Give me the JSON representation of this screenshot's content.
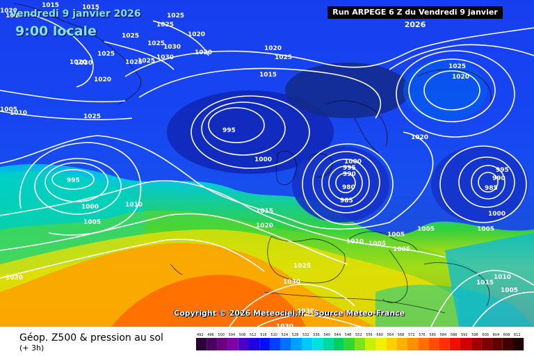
{
  "header": {
    "date_text": "Vendredi 9 janvier 2026",
    "time_text": "9:00 locale",
    "run_text": "Run ARPEGE 6 Z du Vendredi 9 janvier 2026"
  },
  "copyright_text": "Copyright © 2026 Meteociel.fr - Source Meteo-France",
  "footer": {
    "title": "Géop. Z500 & pression au sol",
    "subtitle": "(+ 3h)"
  },
  "legend": {
    "values": [
      "492",
      "496",
      "500",
      "504",
      "508",
      "512",
      "516",
      "520",
      "524",
      "528",
      "532",
      "536",
      "540",
      "544",
      "548",
      "552",
      "556",
      "560",
      "564",
      "568",
      "572",
      "576",
      "580",
      "584",
      "588",
      "592",
      "596",
      "600",
      "604",
      "608",
      "612"
    ],
    "colors": [
      "#2a0038",
      "#4a005e",
      "#6a0080",
      "#7d00a8",
      "#4b00c8",
      "#2000e0",
      "#0010ff",
      "#0040ff",
      "#0070ff",
      "#00a0ff",
      "#00c8ff",
      "#00e0e0",
      "#00d8a0",
      "#00d060",
      "#30d830",
      "#80e020",
      "#c8f000",
      "#f0f000",
      "#ffd000",
      "#ffb000",
      "#ff9000",
      "#ff7000",
      "#ff5000",
      "#ff3000",
      "#f01000",
      "#d00000",
      "#a00000",
      "#800000",
      "#600000",
      "#400000",
      "#200000"
    ]
  },
  "isobar_labels": [
    {
      "text": "1020"
    },
    {
      "text": "1015"
    },
    {
      "text": "1025"
    },
    {
      "text": "1020"
    },
    {
      "text": "1025"
    },
    {
      "text": "1025"
    },
    {
      "text": "1020"
    },
    {
      "text": "1030"
    },
    {
      "text": "1025"
    },
    {
      "text": "1025"
    },
    {
      "text": "1020"
    },
    {
      "text": "1025"
    },
    {
      "text": "1025"
    },
    {
      "text": "1020"
    },
    {
      "text": "1015"
    },
    {
      "text": "1015"
    },
    {
      "text": "1025"
    },
    {
      "text": "1030"
    },
    {
      "text": "1030"
    },
    {
      "text": "1020"
    },
    {
      "text": "1005"
    },
    {
      "text": "1010"
    },
    {
      "text": "1025"
    },
    {
      "text": "995"
    },
    {
      "text": "1000"
    },
    {
      "text": "1000"
    },
    {
      "text": "995"
    },
    {
      "text": "990"
    },
    {
      "text": "980"
    },
    {
      "text": "985"
    },
    {
      "text": "995"
    },
    {
      "text": "990"
    },
    {
      "text": "985"
    },
    {
      "text": "1000"
    },
    {
      "text": "1005"
    },
    {
      "text": "1020"
    },
    {
      "text": "995"
    },
    {
      "text": "1000"
    },
    {
      "text": "1010"
    },
    {
      "text": "1005"
    },
    {
      "text": "1015"
    },
    {
      "text": "1020"
    },
    {
      "text": "1010"
    },
    {
      "text": "1005"
    },
    {
      "text": "1005"
    },
    {
      "text": "1005"
    },
    {
      "text": "1020"
    },
    {
      "text": "1025"
    },
    {
      "text": "1030"
    },
    {
      "text": "1030"
    },
    {
      "text": "1030"
    },
    {
      "text": "1030"
    },
    {
      "text": "1010"
    },
    {
      "text": "1015"
    },
    {
      "text": "1005"
    },
    {
      "text": "1015"
    },
    {
      "text": "1025"
    },
    {
      "text": "1020"
    },
    {
      "text": "1005"
    }
  ]
}
